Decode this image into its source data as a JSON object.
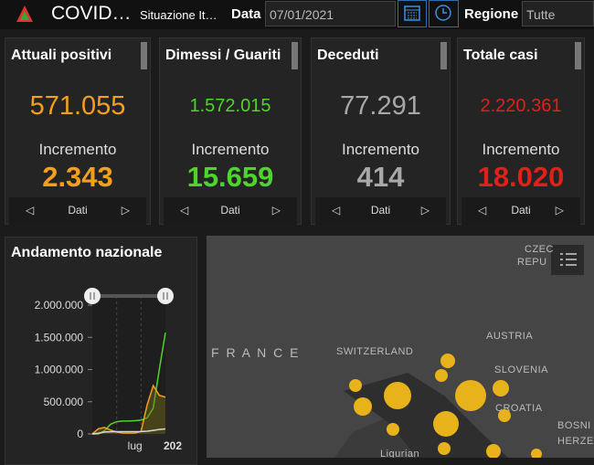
{
  "header": {
    "title": "COVID…",
    "subtitle": "Situazione It…",
    "date_label": "Data",
    "date_value": "07/01/2021",
    "region_label": "Regione",
    "region_value": "Tutte"
  },
  "cards": [
    {
      "title": "Attuali positivi",
      "value": "571.055",
      "increment_label": "Incremento",
      "increment": "2.343",
      "nav": "Dati",
      "color": "#f5a01a"
    },
    {
      "title": "Dimessi / Guariti",
      "value": "1.572.015",
      "increment_label": "Incremento",
      "increment": "15.659",
      "nav": "Dati",
      "color": "#4fd42c"
    },
    {
      "title": "Deceduti",
      "value": "77.291",
      "increment_label": "Incremento",
      "increment": "414",
      "nav": "Dati",
      "color": "#a8a8a8"
    },
    {
      "title": "Totale casi",
      "value": "2.220.361",
      "increment_label": "Incremento",
      "increment": "18.020",
      "nav": "Dati",
      "color": "#e0201b"
    }
  ],
  "chart_data": {
    "type": "line",
    "title": "Andamento nazionale",
    "categories": [
      null,
      null,
      null,
      null,
      null,
      null,
      null,
      "lug",
      null,
      null,
      null,
      null,
      "202"
    ],
    "series": [
      {
        "name": "Dimessi / Guariti",
        "color": "#4fd42c",
        "values": [
          0,
          0,
          50000,
          150000,
          190000,
          200000,
          200000,
          205000,
          215000,
          250000,
          400000,
          1000000,
          1572015
        ]
      },
      {
        "name": "Attuali positivi",
        "color": "#f5a01a",
        "values": [
          0,
          80000,
          100000,
          60000,
          30000,
          15000,
          13000,
          15000,
          40000,
          450000,
          750000,
          600000,
          571055
        ]
      },
      {
        "name": "Deceduti",
        "color": "#d8d8d8",
        "values": [
          0,
          10000,
          30000,
          33000,
          35000,
          35000,
          35000,
          35500,
          37000,
          42000,
          55000,
          70000,
          77291
        ]
      }
    ],
    "ylim": [
      0,
      2000000
    ],
    "yticks": [
      {
        "value": 0,
        "label": "0"
      },
      {
        "value": 500000,
        "label": "500.000"
      },
      {
        "value": 1000000,
        "label": "1.000.000"
      },
      {
        "value": 1500000,
        "label": "1.500.000"
      },
      {
        "value": 2000000,
        "label": "2.000.000"
      }
    ]
  },
  "map": {
    "labels": [
      "CZEC",
      "REPU",
      "F R A N C E",
      "SWITZERLAND",
      "AUSTRIA",
      "SLOVENIA",
      "CROATIA",
      "BOSNI",
      "HERZE",
      "Ligurian"
    ]
  }
}
